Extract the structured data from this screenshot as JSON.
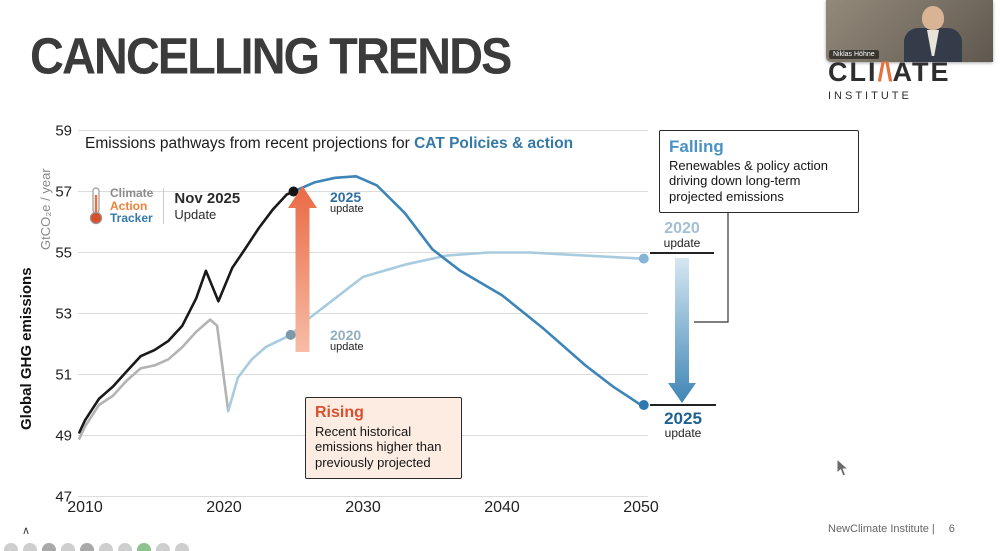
{
  "slide": {
    "title": "CANCELLING TRENDS",
    "footer_text": "NewClimate Institute |",
    "page_number": "6",
    "corner_caret": "∧"
  },
  "webcam": {
    "name": "Niklas Höhne"
  },
  "logo": {
    "part1": "CLI",
    "slash": "/\\",
    "part2": "ATE",
    "subtitle": "INSTITUTE"
  },
  "chart_header": {
    "title_prefix": "Emissions pathways from recent projections for ",
    "title_highlight": "CAT Policies & action"
  },
  "cat_logo": {
    "line1": "Climate",
    "line2": "Action",
    "line3": "Tracker",
    "date_line1": "Nov 2025",
    "date_line2": "Update"
  },
  "axis": {
    "ylabel_main": "Global GHG emissions",
    "ylabel_unit": "GtCO₂e / year"
  },
  "annotations": {
    "rising_title": "Rising",
    "rising_body": "Recent historical emissions higher than previously projected",
    "falling_title": "Falling",
    "falling_body": "Renewables & policy action driving down long-term projected emissions",
    "arrow_top_year": "2025",
    "arrow_top_sub": "update",
    "arrow_mid_year": "2020",
    "arrow_mid_sub": "update",
    "right_top_year": "2020",
    "right_top_sub": "update",
    "right_bottom_year": "2025",
    "right_bottom_sub": "update"
  },
  "colors": {
    "historical_new": "#1a1a1a",
    "historical_old": "#b3b3b3",
    "projection_2020": "#a9cbe0",
    "projection_2025": "#3d85b8",
    "rising_accent": "#d9502e",
    "falling_accent": "#4a93c4"
  },
  "chart_data": {
    "type": "line",
    "title": "Emissions pathways from recent projections for CAT Policies & action",
    "xlabel": "",
    "ylabel": "Global GHG emissions GtCO₂e / year",
    "xlim": [
      2008.5,
      2052
    ],
    "ylim": [
      47,
      59
    ],
    "xticks": [
      2010,
      2020,
      2030,
      2040,
      2050
    ],
    "yticks": [
      47,
      49,
      51,
      53,
      55,
      57,
      59
    ],
    "grid": true,
    "legend": "none",
    "series": [
      {
        "name": "historical-emissions-nov-2025-update",
        "color": "#1a1a1a",
        "x": [
          2009.6,
          2010,
          2011,
          2012,
          2013,
          2014,
          2015,
          2016,
          2017,
          2018,
          2018.7,
          2019.6,
          2020.6,
          2021.5,
          2022.5,
          2023.5,
          2024.5,
          2025
        ],
        "y": [
          49.1,
          49.5,
          50.2,
          50.6,
          51.1,
          51.6,
          51.8,
          52.1,
          52.6,
          53.5,
          54.4,
          53.4,
          54.5,
          55.1,
          55.8,
          56.4,
          56.9,
          57.0
        ]
      },
      {
        "name": "historical-emissions-2020-update",
        "color": "#b3b3b3",
        "x": [
          2009.6,
          2010,
          2011,
          2012,
          2013,
          2014,
          2015,
          2016,
          2017,
          2018,
          2019,
          2019.5,
          2020.3
        ],
        "y": [
          48.9,
          49.3,
          50.0,
          50.3,
          50.8,
          51.2,
          51.3,
          51.5,
          51.9,
          52.4,
          52.8,
          52.6,
          49.8
        ]
      },
      {
        "name": "projection-2020-update",
        "color": "#a9cbe0",
        "x": [
          2020.3,
          2021,
          2022,
          2023,
          2024.8,
          2026,
          2028,
          2030,
          2033,
          2036,
          2039,
          2042,
          2046,
          2050
        ],
        "y": [
          49.8,
          50.9,
          51.5,
          51.9,
          52.3,
          52.8,
          53.5,
          54.2,
          54.6,
          54.9,
          55.0,
          55.0,
          54.9,
          54.8
        ]
      },
      {
        "name": "projection-2025-update",
        "color": "#3d85b8",
        "x": [
          2025,
          2026.5,
          2028,
          2029.5,
          2031,
          2033,
          2035,
          2037,
          2040,
          2043,
          2046,
          2048,
          2050
        ],
        "y": [
          57.0,
          57.3,
          57.45,
          57.5,
          57.2,
          56.3,
          55.1,
          54.4,
          53.6,
          52.5,
          51.3,
          50.6,
          50.0
        ]
      }
    ],
    "markers": [
      {
        "name": "start-dot-2025-update",
        "x": 2025,
        "y": 57.0,
        "color": "#141414"
      },
      {
        "name": "start-dot-2020-update",
        "x": 2024.8,
        "y": 52.3,
        "color": "#7b99aa"
      },
      {
        "name": "end-dot-2020-update",
        "x": 2050.2,
        "y": 54.8,
        "color": "#84b4d6"
      },
      {
        "name": "end-dot-2025-update",
        "x": 2050.2,
        "y": 50.0,
        "color": "#2e78ad"
      }
    ],
    "annotations": [
      {
        "type": "arrow-up",
        "label": "Rising",
        "x": 2025.6,
        "from_y": 51.9,
        "to_y": 57.2
      },
      {
        "type": "arrow-down",
        "label": "Falling",
        "x": 2053,
        "from_y": 54.9,
        "to_y": 50.1
      }
    ]
  }
}
